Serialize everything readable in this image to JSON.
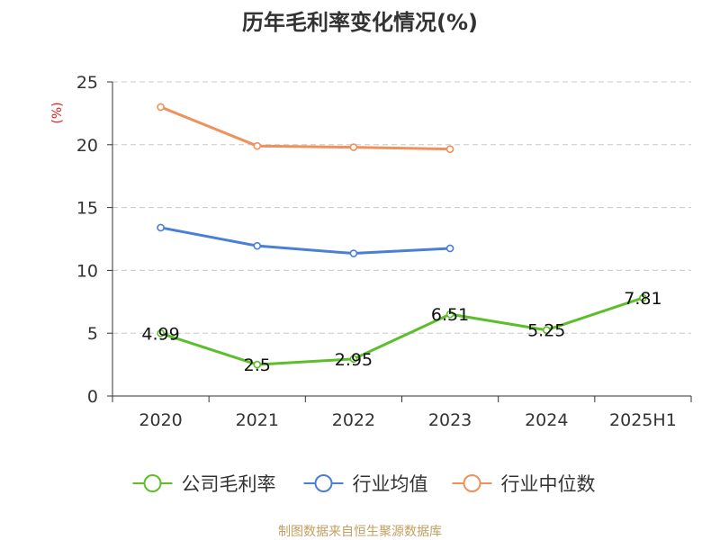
{
  "chart_data": {
    "type": "line",
    "title": "历年毛利率变化情况(%)",
    "ylabel": "(%)",
    "xlabel": "",
    "categories": [
      "2020",
      "2021",
      "2022",
      "2023",
      "2024",
      "2025H1"
    ],
    "ylim": [
      0,
      25
    ],
    "yticks": [
      0,
      5,
      10,
      15,
      20,
      25
    ],
    "grid": true,
    "legend_position": "bottom",
    "series": [
      {
        "name": "公司毛利率",
        "color": "#5cbf2a",
        "values": [
          4.99,
          2.5,
          2.95,
          6.51,
          5.25,
          7.81
        ],
        "labels": [
          "4.99",
          "2.5",
          "2.95",
          "6.51",
          "5.25",
          "7.81"
        ]
      },
      {
        "name": "行业均值",
        "color": "#4a7fd8",
        "values": [
          13.4,
          11.95,
          11.35,
          11.75,
          null,
          null
        ]
      },
      {
        "name": "行业中位数",
        "color": "#f0905a",
        "values": [
          23.0,
          19.9,
          19.8,
          19.65,
          null,
          null
        ]
      }
    ]
  },
  "source_note": "制图数据来自恒生聚源数据库",
  "colors": {
    "axis": "#333333",
    "grid": "#c8c8c8",
    "ylabel": "#e02020",
    "source": "#c0a060"
  }
}
